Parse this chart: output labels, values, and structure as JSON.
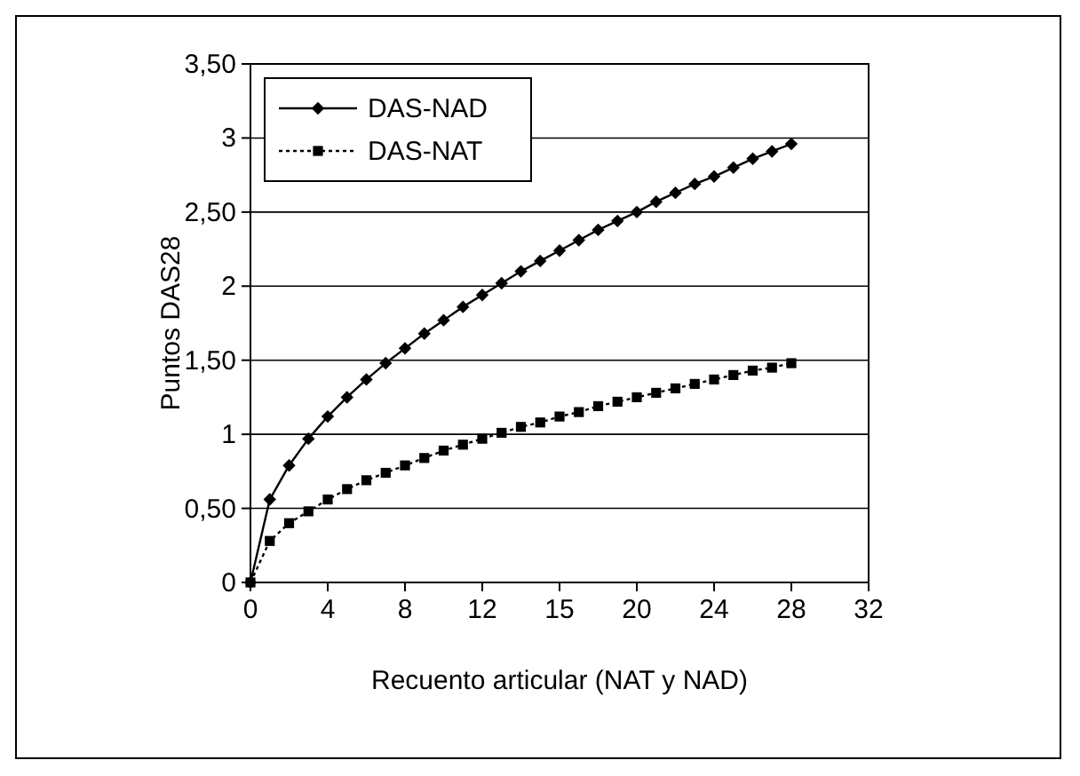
{
  "chart_data": {
    "type": "line",
    "xlabel": "Recuento articular (NAT y NAD)",
    "ylabel": "Puntos DAS28",
    "categories": [
      "0",
      null,
      null,
      null,
      "4",
      null,
      null,
      null,
      "8",
      null,
      null,
      null,
      "12",
      null,
      null,
      null,
      "15",
      null,
      null,
      null,
      "20",
      null,
      null,
      null,
      "24",
      null,
      null,
      null,
      "28",
      null,
      null,
      null,
      "32"
    ],
    "series": [
      {
        "name": "DAS-NAD",
        "color": "#000000",
        "marker": "diamond",
        "line_style": "solid",
        "values": [
          0,
          0.56,
          0.79,
          0.97,
          1.12,
          1.25,
          1.37,
          1.48,
          1.58,
          1.68,
          1.77,
          1.86,
          1.94,
          2.02,
          2.1,
          2.17,
          2.24,
          2.31,
          2.38,
          2.44,
          2.5,
          2.57,
          2.63,
          2.69,
          2.74,
          2.8,
          2.86,
          2.91,
          2.96,
          null,
          null,
          null,
          null
        ]
      },
      {
        "name": "DAS-NAT",
        "color": "#000000",
        "marker": "square",
        "line_style": "dotted",
        "values": [
          0,
          0.28,
          0.4,
          0.48,
          0.56,
          0.63,
          0.69,
          0.74,
          0.79,
          0.84,
          0.89,
          0.93,
          0.97,
          1.01,
          1.05,
          1.08,
          1.12,
          1.15,
          1.19,
          1.22,
          1.25,
          1.28,
          1.31,
          1.34,
          1.37,
          1.4,
          1.43,
          1.45,
          1.48,
          null,
          null,
          null,
          null
        ]
      }
    ],
    "ylim": [
      0,
      3.5
    ],
    "yticks": [
      0,
      {
        "value": 0.5,
        "label": "0,50"
      },
      1,
      {
        "value": 1.5,
        "label": "1,50"
      },
      2,
      {
        "value": 2.5,
        "label": "2,50"
      },
      3,
      {
        "value": 3.5,
        "label": "3,50"
      }
    ],
    "grid": "y",
    "legend": "top left"
  }
}
